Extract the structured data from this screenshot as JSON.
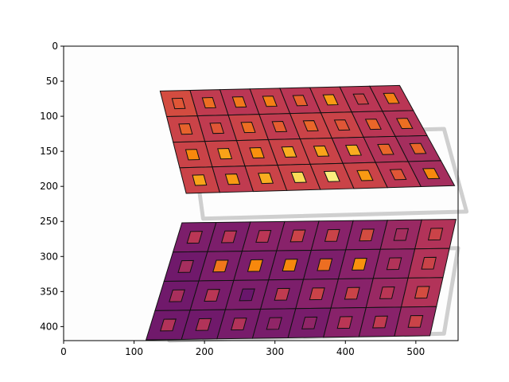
{
  "chart_data": {
    "type": "heatmap",
    "title": "",
    "xlabel": "",
    "ylabel": "",
    "xlim": [
      0,
      560
    ],
    "ylim": [
      420,
      0
    ],
    "x_ticks": [
      0,
      100,
      200,
      300,
      400,
      500
    ],
    "y_ticks": [
      0,
      50,
      100,
      150,
      200,
      250,
      300,
      350,
      400
    ],
    "y_inverted": true,
    "grid": false,
    "colormap": "inferno",
    "value_range": [
      0,
      1
    ],
    "panels": [
      {
        "name": "",
        "corners": {
          "top_left": [
            137,
            64
          ],
          "top_right": [
            477,
            56
          ],
          "bottom_right": [
            555,
            199
          ],
          "bottom_left": [
            174,
            210
          ]
        },
        "cells": [
          [
            0.58,
            0.52,
            0.5,
            0.52,
            0.5,
            0.52,
            0.5,
            0.5
          ],
          [
            0.55,
            0.52,
            0.55,
            0.52,
            0.55,
            0.55,
            0.5,
            0.48
          ],
          [
            0.55,
            0.55,
            0.55,
            0.55,
            0.55,
            0.5,
            0.48,
            0.45
          ],
          [
            0.55,
            0.52,
            0.55,
            0.55,
            0.55,
            0.55,
            0.5,
            0.45
          ]
        ],
        "inner": [
          [
            0.62,
            0.68,
            0.7,
            0.72,
            0.65,
            0.78,
            0.55,
            0.72
          ],
          [
            0.65,
            0.62,
            0.68,
            0.64,
            0.66,
            0.62,
            0.66,
            0.68
          ],
          [
            0.74,
            0.8,
            0.76,
            0.82,
            0.8,
            0.82,
            0.66,
            0.66
          ],
          [
            0.8,
            0.78,
            0.82,
            0.92,
            0.96,
            0.78,
            0.62,
            0.74
          ]
        ]
      },
      {
        "name": "",
        "corners": {
          "top_left": [
            168,
            252
          ],
          "top_right": [
            557,
            247
          ],
          "bottom_right": [
            520,
            413
          ],
          "bottom_left": [
            117,
            419
          ]
        },
        "cells": [
          [
            0.35,
            0.35,
            0.38,
            0.38,
            0.38,
            0.38,
            0.42,
            0.48
          ],
          [
            0.32,
            0.35,
            0.35,
            0.35,
            0.35,
            0.38,
            0.4,
            0.48
          ],
          [
            0.32,
            0.34,
            0.35,
            0.35,
            0.38,
            0.38,
            0.42,
            0.48
          ],
          [
            0.32,
            0.32,
            0.34,
            0.34,
            0.34,
            0.38,
            0.38,
            0.42
          ]
        ],
        "inner": [
          [
            0.5,
            0.5,
            0.5,
            0.55,
            0.55,
            0.58,
            0.45,
            0.55
          ],
          [
            0.45,
            0.7,
            0.74,
            0.74,
            0.68,
            0.76,
            0.48,
            0.55
          ],
          [
            0.46,
            0.5,
            0.3,
            0.52,
            0.55,
            0.55,
            0.5,
            0.58
          ],
          [
            0.48,
            0.48,
            0.48,
            0.4,
            0.4,
            0.5,
            0.52,
            0.55
          ]
        ]
      }
    ]
  }
}
